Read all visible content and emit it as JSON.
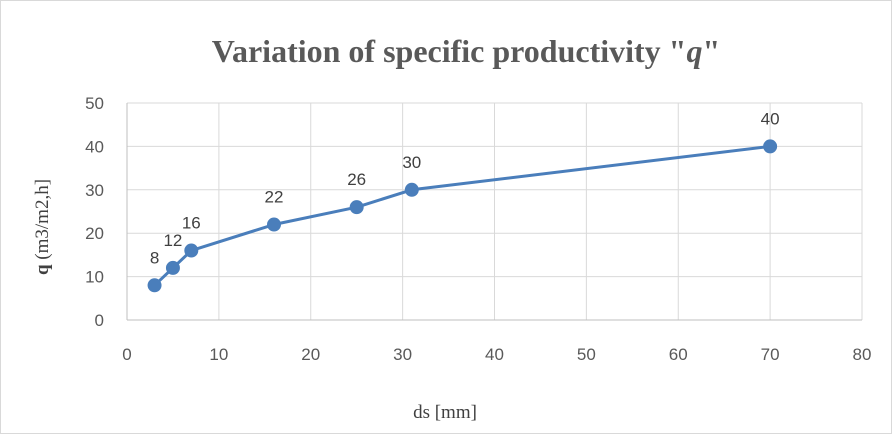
{
  "chart_data": {
    "type": "line",
    "title_main": "Variation of specific productivity \"",
    "title_var": "q",
    "title_end": "\"",
    "xlabel": "ds [mm]",
    "ylabel_bold": "q",
    "ylabel_rest": " (m3/m2,h]",
    "xlim": [
      0,
      80
    ],
    "ylim": [
      0,
      50
    ],
    "x_ticks": [
      0,
      10,
      20,
      30,
      40,
      50,
      60,
      70,
      80
    ],
    "y_ticks": [
      0,
      10,
      20,
      30,
      40,
      50
    ],
    "grid": true,
    "series": [
      {
        "x": [
          3,
          5,
          7,
          16,
          25,
          31,
          70
        ],
        "y": [
          8,
          12,
          16,
          22,
          26,
          30,
          40
        ],
        "data_labels": [
          "8",
          "12",
          "16",
          "22",
          "26",
          "30",
          "40"
        ],
        "color": "#4a7ebb"
      }
    ]
  }
}
